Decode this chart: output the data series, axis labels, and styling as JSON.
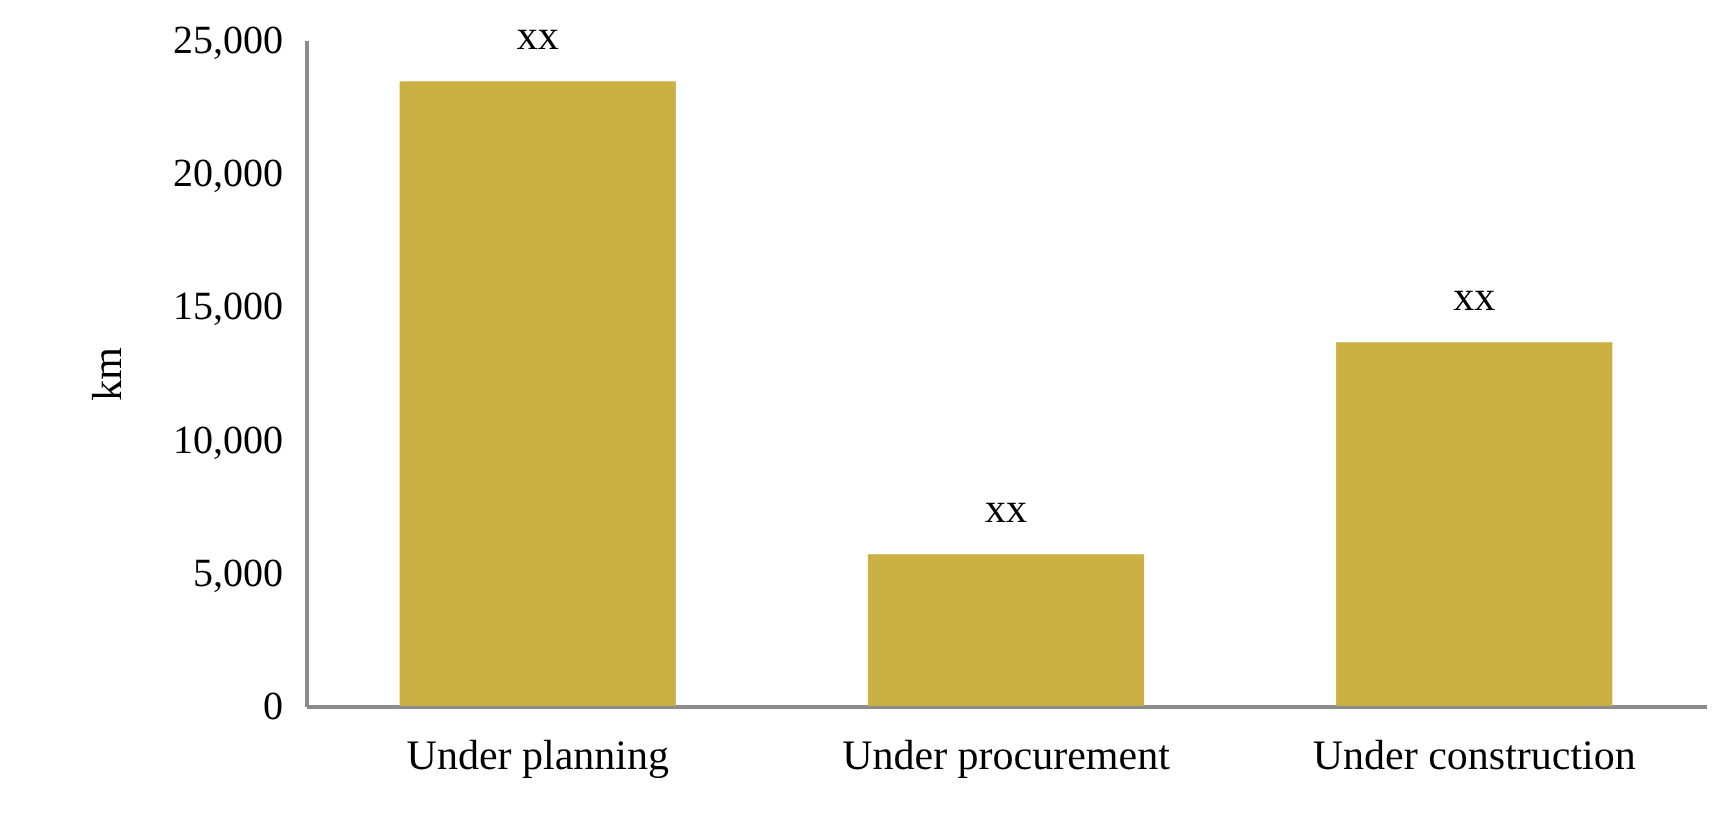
{
  "chart_data": {
    "type": "bar",
    "ylabel": "km",
    "categories": [
      "Under planning",
      "Under procurement",
      "Under construction"
    ],
    "values": [
      23450,
      5700,
      13650
    ],
    "value_labels": [
      "xx",
      "xx",
      "xx"
    ],
    "color": "#cbb044",
    "ylim": [
      0,
      25000
    ],
    "yticks": [
      0,
      {
        "value": 5000,
        "label": "5,000"
      },
      {
        "value": 10000,
        "label": "10,000"
      },
      {
        "value": 15000,
        "label": "15,000"
      },
      {
        "value": 20000,
        "label": "20,000"
      },
      {
        "value": 25000,
        "label": "25,000"
      }
    ],
    "grid": false
  }
}
